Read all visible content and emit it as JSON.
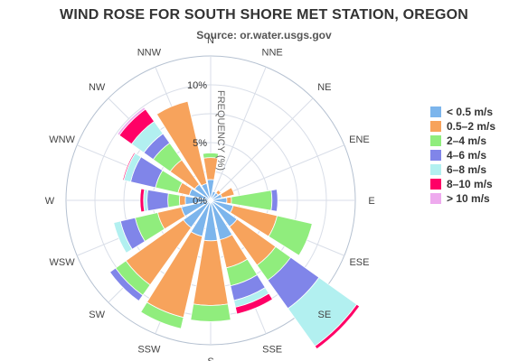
{
  "chart_data": {
    "type": "bar",
    "subtype": "stacked-polar-wind-rose",
    "title": "WIND ROSE FOR SOUTH SHORE MET STATION, OREGON",
    "subtitle": "Source: or.water.usgs.gov",
    "radial_axis_title": "FREQUENCY (%)",
    "radial_range": [
      0,
      12.5
    ],
    "radial_ticks": [
      "0%",
      "5%",
      "10%"
    ],
    "radial_tick_values": [
      0,
      5,
      10
    ],
    "grid": true,
    "legend_position": "right",
    "categories": [
      "N",
      "NNE",
      "NE",
      "ENE",
      "E",
      "ESE",
      "SE",
      "SSE",
      "S",
      "SSW",
      "SW",
      "WSW",
      "W",
      "WNW",
      "NW",
      "NNW"
    ],
    "series": [
      {
        "name": "< 0.5 m/s",
        "color": "#7cb5ec",
        "values": [
          1.8,
          0.8,
          0.8,
          1.0,
          1.4,
          2.0,
          2.8,
          3.5,
          3.5,
          3.2,
          2.9,
          2.6,
          2.2,
          1.9,
          1.7,
          1.5
        ]
      },
      {
        "name": "0.5–2 m/s",
        "color": "#f7a35c",
        "values": [
          1.9,
          0.0,
          0.3,
          1.1,
          0.4,
          3.9,
          4.1,
          2.5,
          5.6,
          7.2,
          6.1,
          2.1,
          0.5,
          1.0,
          2.6,
          7.3
        ]
      },
      {
        "name": "2–4 m/s",
        "color": "#90ed7d",
        "values": [
          0.4,
          0.0,
          0.0,
          0.0,
          3.5,
          3.1,
          1.6,
          1.6,
          1.4,
          1.0,
          1.1,
          2.0,
          1.0,
          2.0,
          1.8,
          0.0
        ]
      },
      {
        "name": "4–6 m/s",
        "color": "#8085e9",
        "values": [
          0.0,
          0.0,
          0.0,
          0.0,
          0.5,
          0.0,
          3.0,
          1.3,
          0.0,
          0.0,
          0.6,
          1.3,
          1.8,
          2.2,
          1.0,
          0.0
        ]
      },
      {
        "name": "6–8 m/s",
        "color": "#b2f0f0",
        "values": [
          0.0,
          0.0,
          0.0,
          0.0,
          0.0,
          0.0,
          4.0,
          0.6,
          0.0,
          0.0,
          0.0,
          0.6,
          0.3,
          0.6,
          1.3,
          0.0
        ]
      },
      {
        "name": "8–10 m/s",
        "color": "#ff0066",
        "values": [
          0.0,
          0.0,
          0.0,
          0.0,
          0.0,
          0.0,
          0.3,
          0.6,
          0.0,
          0.0,
          0.0,
          0.0,
          0.3,
          0.1,
          1.3,
          0.0
        ]
      },
      {
        "name": "> 10 m/s",
        "color": "#eeaaee",
        "values": [
          0.0,
          0.0,
          0.0,
          0.0,
          0.0,
          0.0,
          0.0,
          0.0,
          0.0,
          0.0,
          0.0,
          0.0,
          0.0,
          0.0,
          0.2,
          0.0
        ]
      }
    ]
  },
  "colors": {
    "grid": "#d9dee8",
    "outer_ring": "#b5c1d1",
    "bar_stroke": "#ffffff"
  }
}
